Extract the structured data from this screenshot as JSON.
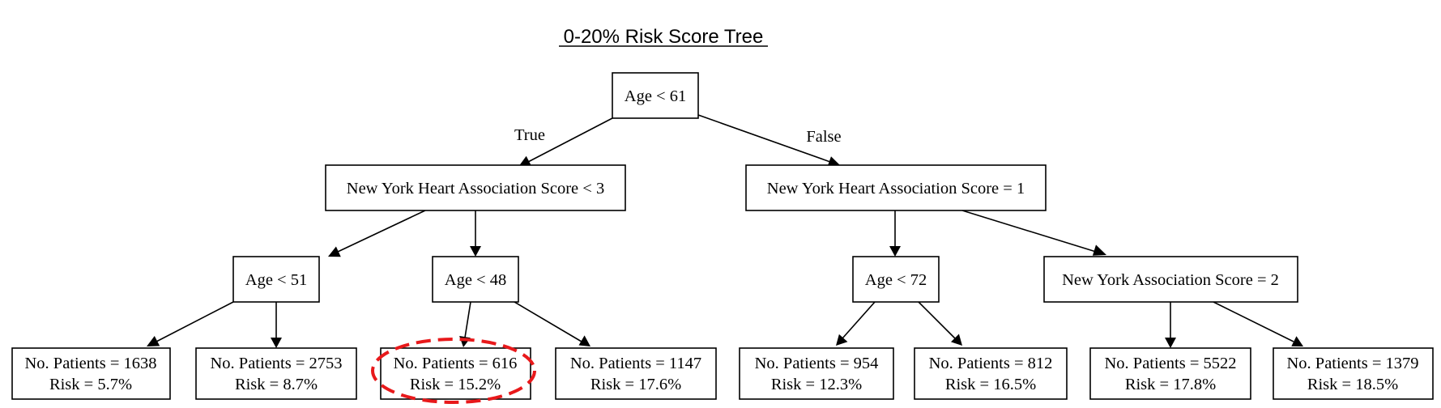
{
  "title": "0-20% Risk Score Tree",
  "edge_labels": {
    "true_label": "True",
    "false_label": "False"
  },
  "nodes": {
    "root": {
      "text": "Age < 61"
    },
    "left_split": {
      "text": "New York Heart Association Score < 3"
    },
    "right_split": {
      "text": "New York Heart Association Score = 1"
    },
    "ll_split": {
      "text": "Age < 51"
    },
    "lr_split": {
      "text": "Age < 48"
    },
    "rl_split": {
      "text": "Age < 72"
    },
    "rr_split": {
      "text": "New York Association Score = 2"
    }
  },
  "leaves": [
    {
      "patients": "No. Patients = 1638",
      "risk": "Risk = 5.7%"
    },
    {
      "patients": "No. Patients = 2753",
      "risk": "Risk = 8.7%"
    },
    {
      "patients": "No. Patients = 616",
      "risk": "Risk = 15.2%"
    },
    {
      "patients": "No. Patients = 1147",
      "risk": "Risk = 17.6%"
    },
    {
      "patients": "No. Patients = 954",
      "risk": "Risk = 12.3%"
    },
    {
      "patients": "No. Patients = 812",
      "risk": "Risk = 16.5%"
    },
    {
      "patients": "No. Patients = 5522",
      "risk": "Risk = 17.8%"
    },
    {
      "patients": "No. Patients = 1379",
      "risk": "Risk = 18.5%"
    }
  ],
  "highlight": {
    "leaf_index": 2,
    "color": "#e8191b"
  },
  "colors": {
    "line": "#000000",
    "background": "#ffffff"
  }
}
